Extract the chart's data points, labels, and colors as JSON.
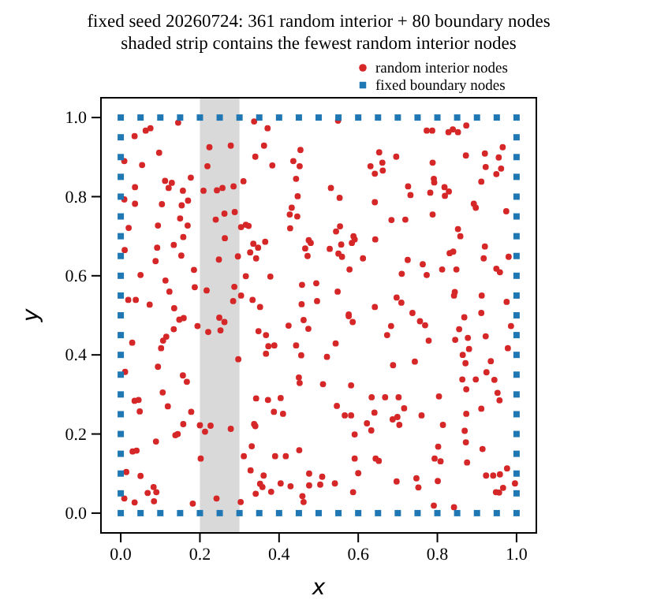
{
  "chart_data": {
    "type": "scatter",
    "title": "fixed seed 20260724: 361 random interior + 80 boundary nodes",
    "subtitle": "shaded strip contains the fewest random interior nodes",
    "xlabel": "x",
    "ylabel": "y",
    "xlim": [
      -0.05,
      1.05
    ],
    "ylim": [
      -0.05,
      1.05
    ],
    "xticks": [
      {
        "value": 0,
        "label": "0.0"
      },
      {
        "value": 0.2,
        "label": "0.2"
      },
      {
        "value": 0.4,
        "label": "0.4"
      },
      {
        "value": 0.6,
        "label": "0.6"
      },
      {
        "value": 0.8,
        "label": "0.8"
      },
      {
        "value": 1,
        "label": "1.0"
      }
    ],
    "yticks": [
      {
        "value": 0,
        "label": "0.0"
      },
      {
        "value": 0.2,
        "label": "0.2"
      },
      {
        "value": 0.4,
        "label": "0.4"
      },
      {
        "value": 0.6,
        "label": "0.6"
      },
      {
        "value": 0.8,
        "label": "0.8"
      },
      {
        "value": 1,
        "label": "1.0"
      }
    ],
    "grid": false,
    "legend": "top right",
    "bands": [
      {
        "axis": "x",
        "from": 0.2,
        "to": 0.3,
        "color": "#d9d9d9"
      }
    ],
    "series": [
      {
        "name": "random interior nodes",
        "color": "#d62728",
        "marker": "circle",
        "x": [
          0.075,
          0.145,
          0.035,
          0.063,
          0.097,
          0.009,
          0.054,
          0.224,
          0.278,
          0.219,
          0.337,
          0.371,
          0.362,
          0.34,
          0.383,
          0.454,
          0.436,
          0.452,
          0.443,
          0.036,
          0.112,
          0.129,
          0.121,
          0.177,
          0.157,
          0.17,
          0.154,
          0.104,
          0.009,
          0.036,
          0.209,
          0.243,
          0.257,
          0.285,
          0.31,
          0.447,
          0.432,
          0.427,
          0.446,
          0.428,
          0.262,
          0.288,
          0.24,
          0.304,
          0.316,
          0.323,
          0.15,
          0.169,
          0.094,
          0.02,
          0.158,
          0.134,
          0.092,
          0.01,
          0.153,
          0.088,
          0.263,
          0.335,
          0.365,
          0.347,
          0.327,
          0.342,
          0.296,
          0.248,
          0.475,
          0.48,
          0.466,
          0.472,
          0.185,
          0.05,
          0.113,
          0.187,
          0.123,
          0.217,
          0.287,
          0.316,
          0.378,
          0.458,
          0.494,
          0.304,
          0.284,
          0.333,
          0.352,
          0.019,
          0.038,
          0.073,
          0.135,
          0.457,
          0.496,
          0.549,
          0.773,
          0.787,
          0.828,
          0.839,
          0.873,
          0.852,
          0.653,
          0.696,
          0.631,
          0.661,
          0.642,
          0.662,
          0.788,
          0.872,
          0.92,
          0.965,
          0.955,
          0.961,
          0.922,
          0.949,
          0.791,
          0.792,
          0.726,
          0.732,
          0.818,
          0.829,
          0.819,
          0.782,
          0.531,
          0.553,
          0.642,
          0.911,
          0.892,
          0.897,
          0.974,
          0.788,
          0.684,
          0.719,
          0.544,
          0.554,
          0.588,
          0.643,
          0.528,
          0.557,
          0.584,
          0.591,
          0.55,
          0.559,
          0.612,
          0.852,
          0.858,
          0.831,
          0.84,
          0.92,
          0.917,
          0.725,
          0.763,
          0.98,
          0.578,
          0.71,
          0.773,
          0.812,
          0.848,
          0.958,
          0.949,
          0.548,
          0.697,
          0.709,
          0.844,
          0.842,
          0.912,
          0.642,
          0.576,
          0.975,
          0.737,
          0.911,
          0.148,
          0.159,
          0.134,
          0.115,
          0.107,
          0.102,
          0.029,
          0.249,
          0.262,
          0.252,
          0.221,
          0.194,
          0.297,
          0.094,
          0.011,
          0.157,
          0.167,
          0.106,
          0.035,
          0.045,
          0.119,
          0.048,
          0.178,
          0.158,
          0.144,
          0.138,
          0.2,
          0.227,
          0.213,
          0.278,
          0.089,
          0.04,
          0.03,
          0.202,
          0.014,
          0.05,
          0.083,
          0.09,
          0.068,
          0.084,
          0.035,
          0.009,
          0.182,
          0.242,
          0.303,
          0.348,
          0.367,
          0.424,
          0.462,
          0.474,
          0.443,
          0.456,
          0.373,
          0.388,
          0.367,
          0.45,
          0.452,
          0.342,
          0.372,
          0.404,
          0.387,
          0.41,
          0.337,
          0.34,
          0.331,
          0.311,
          0.328,
          0.361,
          0.39,
          0.417,
          0.451,
          0.352,
          0.358,
          0.38,
          0.404,
          0.429,
          0.476,
          0.459,
          0.462,
          0.341,
          0.476,
          0.576,
          0.586,
          0.543,
          0.521,
          0.511,
          0.582,
          0.683,
          0.673,
          0.756,
          0.769,
          0.778,
          0.743,
          0.688,
          0.868,
          0.855,
          0.845,
          0.877,
          0.922,
          0.986,
          0.978,
          0.88,
          0.864,
          0.871,
          0.935,
          0.924,
          0.944,
          0.863,
          0.873,
          0.897,
          0.952,
          0.957,
          0.546,
          0.566,
          0.582,
          0.634,
          0.668,
          0.702,
          0.716,
          0.641,
          0.622,
          0.633,
          0.591,
          0.687,
          0.699,
          0.704,
          0.76,
          0.804,
          0.814,
          0.873,
          0.911,
          0.869,
          0.872,
          0.802,
          0.793,
          0.808,
          0.875,
          0.914,
          0.591,
          0.644,
          0.652,
          0.6,
          0.509,
          0.504,
          0.541,
          0.697,
          0.747,
          0.801,
          0.752,
          0.923,
          0.941,
          0.958,
          0.976,
          0.966,
          0.948,
          0.956,
          0.996,
          0.587,
          0.791,
          0.842
        ],
        "values": [
          0.973,
          0.987,
          0.953,
          0.967,
          0.911,
          0.89,
          0.88,
          0.925,
          0.929,
          0.877,
          0.99,
          0.973,
          0.929,
          0.901,
          0.879,
          0.918,
          0.89,
          0.877,
          0.845,
          0.824,
          0.84,
          0.835,
          0.822,
          0.848,
          0.815,
          0.79,
          0.778,
          0.781,
          0.793,
          0.782,
          0.815,
          0.816,
          0.822,
          0.826,
          0.839,
          0.801,
          0.772,
          0.755,
          0.75,
          0.72,
          0.757,
          0.761,
          0.742,
          0.723,
          0.729,
          0.726,
          0.745,
          0.727,
          0.727,
          0.721,
          0.698,
          0.678,
          0.671,
          0.665,
          0.651,
          0.637,
          0.695,
          0.681,
          0.686,
          0.671,
          0.659,
          0.644,
          0.649,
          0.641,
          0.69,
          0.683,
          0.669,
          0.65,
          0.615,
          0.602,
          0.588,
          0.571,
          0.56,
          0.563,
          0.572,
          0.599,
          0.598,
          0.577,
          0.581,
          0.55,
          0.536,
          0.539,
          0.521,
          0.539,
          0.539,
          0.527,
          0.518,
          0.528,
          0.536,
          0.992,
          0.967,
          0.967,
          0.963,
          0.97,
          0.98,
          0.963,
          0.912,
          0.901,
          0.877,
          0.886,
          0.858,
          0.866,
          0.886,
          0.904,
          0.909,
          0.925,
          0.899,
          0.871,
          0.875,
          0.857,
          0.845,
          0.836,
          0.826,
          0.804,
          0.824,
          0.813,
          0.802,
          0.81,
          0.822,
          0.797,
          0.786,
          0.838,
          0.782,
          0.772,
          0.763,
          0.755,
          0.741,
          0.742,
          0.712,
          0.725,
          0.7,
          0.692,
          0.668,
          0.679,
          0.683,
          0.692,
          0.656,
          0.648,
          0.644,
          0.718,
          0.7,
          0.657,
          0.661,
          0.674,
          0.644,
          0.64,
          0.629,
          0.648,
          0.616,
          0.605,
          0.602,
          0.616,
          0.616,
          0.609,
          0.618,
          0.56,
          0.545,
          0.532,
          0.559,
          0.55,
          0.55,
          0.521,
          0.502,
          0.534,
          0.506,
          0.506,
          0.489,
          0.493,
          0.465,
          0.446,
          0.436,
          0.417,
          0.431,
          0.494,
          0.483,
          0.462,
          0.458,
          0.473,
          0.389,
          0.37,
          0.357,
          0.348,
          0.332,
          0.305,
          0.284,
          0.286,
          0.27,
          0.257,
          0.256,
          0.225,
          0.2,
          0.197,
          0.222,
          0.221,
          0.206,
          0.213,
          0.181,
          0.158,
          0.156,
          0.138,
          0.104,
          0.094,
          0.066,
          0.053,
          0.051,
          0.03,
          0.027,
          0.037,
          0.024,
          0.037,
          0.028,
          0.46,
          0.45,
          0.474,
          0.488,
          0.466,
          0.424,
          0.399,
          0.422,
          0.424,
          0.403,
          0.343,
          0.329,
          0.29,
          0.286,
          0.291,
          0.256,
          0.251,
          0.225,
          0.22,
          0.169,
          0.144,
          0.108,
          0.095,
          0.144,
          0.144,
          0.159,
          0.074,
          0.066,
          0.054,
          0.075,
          0.068,
          0.07,
          0.043,
          0.028,
          0.049,
          0.1,
          0.498,
          0.483,
          0.429,
          0.395,
          0.326,
          0.323,
          0.473,
          0.45,
          0.485,
          0.475,
          0.436,
          0.383,
          0.374,
          0.495,
          0.465,
          0.438,
          0.443,
          0.447,
          0.473,
          0.417,
          0.415,
          0.4,
          0.379,
          0.384,
          0.356,
          0.337,
          0.338,
          0.313,
          0.338,
          0.304,
          0.285,
          0.271,
          0.247,
          0.247,
          0.293,
          0.293,
          0.293,
          0.265,
          0.254,
          0.227,
          0.209,
          0.199,
          0.237,
          0.243,
          0.223,
          0.247,
          0.295,
          0.223,
          0.251,
          0.264,
          0.208,
          0.179,
          0.168,
          0.138,
          0.131,
          0.128,
          0.162,
          0.138,
          0.138,
          0.132,
          0.101,
          0.092,
          0.072,
          0.075,
          0.08,
          0.088,
          0.081,
          0.065,
          0.095,
          0.095,
          0.098,
          0.113,
          0.064,
          0.053,
          0.052,
          0.075,
          0.053,
          0.019,
          0.015
        ]
      },
      {
        "name": "fixed boundary nodes",
        "color": "#1f77b4",
        "marker": "square",
        "x": [
          0,
          0.05,
          0.1,
          0.15,
          0.2,
          0.25,
          0.3,
          0.35,
          0.4,
          0.45,
          0.5,
          0.55,
          0.6,
          0.65,
          0.7,
          0.75,
          0.8,
          0.85,
          0.9,
          0.95,
          1,
          1,
          1,
          1,
          1,
          1,
          1,
          1,
          1,
          1,
          1,
          1,
          1,
          1,
          1,
          1,
          1,
          1,
          1,
          1,
          1,
          0.95,
          0.9,
          0.85,
          0.8,
          0.75,
          0.7,
          0.65,
          0.6,
          0.55,
          0.5,
          0.45,
          0.4,
          0.35,
          0.3,
          0.25,
          0.2,
          0.15,
          0.1,
          0.05,
          0,
          0,
          0,
          0,
          0,
          0,
          0,
          0,
          0,
          0,
          0,
          0,
          0,
          0,
          0,
          0,
          0,
          0,
          0,
          0
        ],
        "values": [
          0,
          0,
          0,
          0,
          0,
          0,
          0,
          0,
          0,
          0,
          0,
          0,
          0,
          0,
          0,
          0,
          0,
          0,
          0,
          0,
          0,
          0.05,
          0.1,
          0.15,
          0.2,
          0.25,
          0.3,
          0.35,
          0.4,
          0.45,
          0.5,
          0.55,
          0.6,
          0.65,
          0.7,
          0.75,
          0.8,
          0.85,
          0.9,
          0.95,
          1,
          1,
          1,
          1,
          1,
          1,
          1,
          1,
          1,
          1,
          1,
          1,
          1,
          1,
          1,
          1,
          1,
          1,
          1,
          1,
          1,
          0.95,
          0.9,
          0.85,
          0.8,
          0.75,
          0.7,
          0.65,
          0.6,
          0.55,
          0.5,
          0.45,
          0.4,
          0.35,
          0.3,
          0.25,
          0.2,
          0.15,
          0.1,
          0.05
        ]
      }
    ]
  }
}
